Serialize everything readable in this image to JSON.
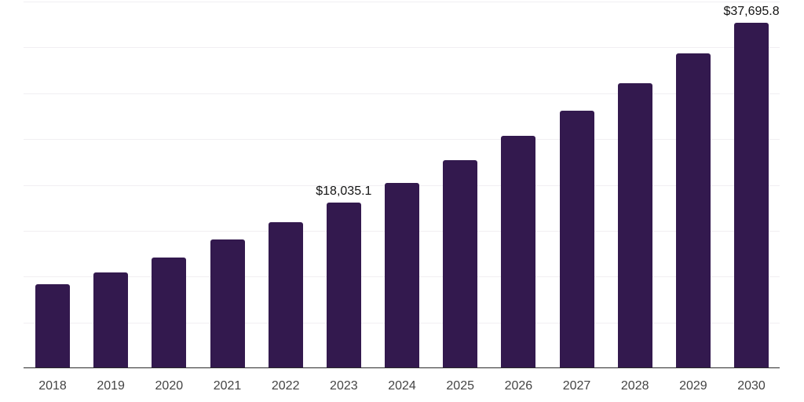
{
  "chart_data": {
    "type": "bar",
    "categories": [
      "2018",
      "2019",
      "2020",
      "2021",
      "2022",
      "2023",
      "2024",
      "2025",
      "2026",
      "2027",
      "2028",
      "2029",
      "2030"
    ],
    "values": [
      9150,
      10480,
      12050,
      14020,
      15960,
      18035.1,
      20210,
      22700,
      25350,
      28090,
      31090,
      34320,
      37695.8
    ],
    "point_labels": [
      "",
      "",
      "",
      "",
      "",
      "$18,035.1",
      "",
      "",
      "",
      "",
      "",
      "",
      "$37,695.8"
    ],
    "labeled_points": [
      {
        "category": "2023",
        "label": "$18,035.1",
        "value": 18035.1
      },
      {
        "category": "2030",
        "label": "$37,695.8",
        "value": 37695.8
      }
    ],
    "ylim": [
      0,
      40000
    ],
    "gridline_step": 5000,
    "grid": true,
    "legend": false,
    "y_axis_labels_visible": false,
    "colors": {
      "bar": "#33194e",
      "gridline": "#f1eff2",
      "axis_line": "#2b2b2b",
      "tick_label": "#444444",
      "data_label": "#141414",
      "background": "#ffffff"
    }
  }
}
